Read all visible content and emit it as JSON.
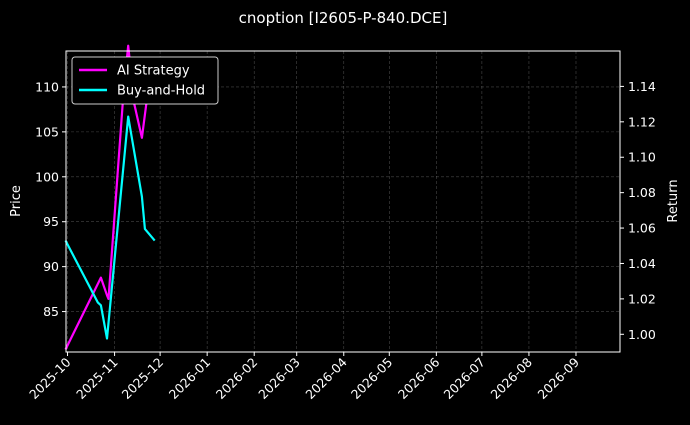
{
  "chart_data": {
    "type": "line",
    "title": "cnoption [I2605-P-840.DCE]",
    "xlabel": "",
    "ylabel_left": "Price",
    "ylabel_right": "Return",
    "x_ticks": [
      "2025-10",
      "2025-11",
      "2025-12",
      "2026-01",
      "2026-02",
      "2026-03",
      "2026-04",
      "2026-05",
      "2026-06",
      "2026-07",
      "2026-08",
      "2026-09"
    ],
    "xlim": [
      "2025-09-30",
      "2026-09-30"
    ],
    "ylim_left": [
      80.5,
      114.0
    ],
    "ylim_right": [
      0.99,
      1.16
    ],
    "y_ticks_left": [
      85,
      90,
      95,
      100,
      105,
      110
    ],
    "y_ticks_right": [
      "1.00",
      "1.02",
      "1.04",
      "1.06",
      "1.08",
      "1.10",
      "1.12",
      "1.14"
    ],
    "grid": true,
    "legend_position": "top-left",
    "series": [
      {
        "name": "AI Strategy",
        "color": "#ff00ff",
        "axis": "right",
        "points": [
          {
            "x": "2025-09-30",
            "y": 0.992
          },
          {
            "x": "2025-10-23",
            "y": 1.032
          },
          {
            "x": "2025-10-27",
            "y": 1.022
          },
          {
            "x": "2025-10-28",
            "y": 1.02
          },
          {
            "x": "2025-11-07",
            "y": 1.138
          },
          {
            "x": "2025-11-10",
            "y": 1.163
          },
          {
            "x": "2025-11-14",
            "y": 1.13
          },
          {
            "x": "2025-11-19",
            "y": 1.111
          },
          {
            "x": "2025-11-24",
            "y": 1.144
          },
          {
            "x": "2025-11-25",
            "y": 1.152
          }
        ]
      },
      {
        "name": "Buy-and-Hold",
        "color": "#00ffff",
        "axis": "left",
        "points": [
          {
            "x": "2025-09-30",
            "y": 92.8
          },
          {
            "x": "2025-10-21",
            "y": 86.0
          },
          {
            "x": "2025-10-23",
            "y": 85.7
          },
          {
            "x": "2025-10-27",
            "y": 82.0
          },
          {
            "x": "2025-10-29",
            "y": 85.5
          },
          {
            "x": "2025-11-10",
            "y": 106.7
          },
          {
            "x": "2025-11-19",
            "y": 97.8
          },
          {
            "x": "2025-11-21",
            "y": 94.2
          },
          {
            "x": "2025-11-27",
            "y": 93.0
          }
        ]
      }
    ]
  }
}
